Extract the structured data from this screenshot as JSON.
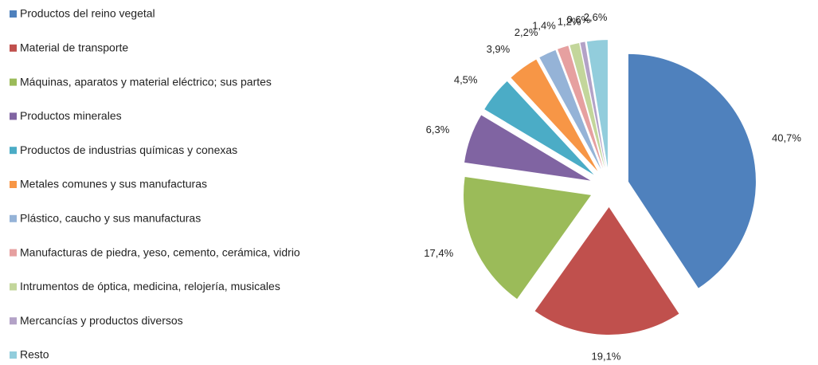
{
  "chart_data": {
    "type": "pie",
    "categories": [
      "Productos del reino vegetal",
      "Material de transporte",
      "Máquinas, aparatos y material eléctrico; sus partes",
      "Productos minerales",
      "Productos de industrias químicas y conexas",
      "Metales comunes y sus manufacturas",
      "Plástico, caucho y sus manufacturas",
      "Manufacturas de piedra, yeso, cemento, cerámica, vidrio",
      "Intrumentos de óptica, medicina, relojería, musicales",
      "Mercancías y productos diversos",
      "Resto"
    ],
    "values": [
      40.7,
      19.1,
      17.4,
      6.3,
      4.5,
      3.9,
      2.2,
      1.4,
      1.2,
      0.6,
      2.6
    ],
    "value_labels": [
      "40,7%",
      "19,1%",
      "17,4%",
      "6,3%",
      "4,5%",
      "3,9%",
      "2,2%",
      "1,4%",
      "1,2%",
      "0,6%",
      "2,6%"
    ],
    "colors": [
      "#4f81bd",
      "#c0504d",
      "#9bbb59",
      "#8064a2",
      "#4bacc6",
      "#f79646",
      "#95b3d7",
      "#e6a0a0",
      "#c3d69b",
      "#b3a2c7",
      "#92cddc"
    ],
    "legend": "left"
  }
}
